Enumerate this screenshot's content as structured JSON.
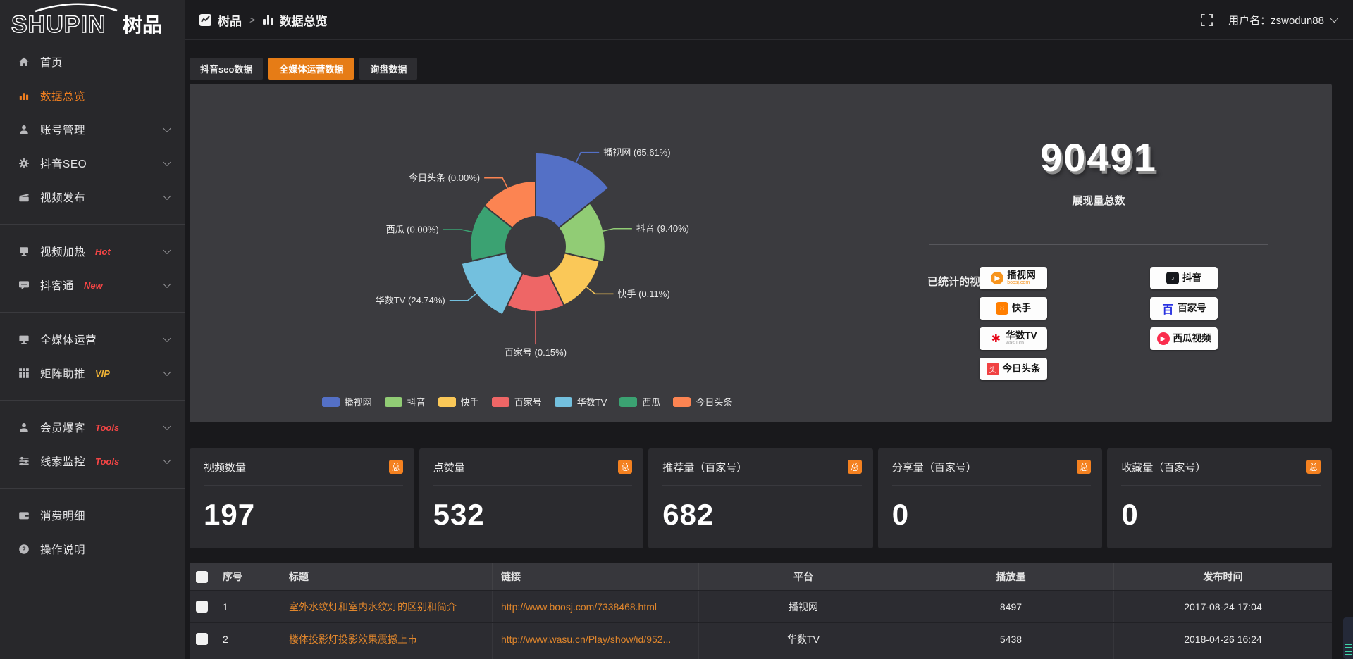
{
  "brand": {
    "name": "SHUPIN",
    "name_cn": "树品"
  },
  "header": {
    "breadcrumb_root": "树品",
    "breadcrumb_sep": ">",
    "breadcrumb_current": "数据总览",
    "user_label": "用户名：zswodun88"
  },
  "sidebar": {
    "items": [
      {
        "key": "home",
        "label": "首页",
        "icon": "home"
      },
      {
        "key": "data-overview",
        "label": "数据总览",
        "icon": "bar-chart",
        "active": true
      },
      {
        "key": "account-management",
        "label": "账号管理",
        "icon": "user",
        "expandable": true
      },
      {
        "key": "douyin-seo",
        "label": "抖音SEO",
        "icon": "gear",
        "expandable": true
      },
      {
        "key": "video-publish",
        "label": "视频发布",
        "icon": "clapperboard",
        "expandable": true
      },
      {
        "divider": true
      },
      {
        "key": "video-heating",
        "label": "视频加热",
        "icon": "screen",
        "tag": "Hot",
        "tag_color": "#f44545",
        "expandable": true
      },
      {
        "key": "douketong",
        "label": "抖客通",
        "icon": "chat",
        "tag": "New",
        "tag_color": "#f44545",
        "expandable": true
      },
      {
        "divider": true
      },
      {
        "key": "omni-media",
        "label": "全媒体运营",
        "icon": "monitor",
        "expandable": true
      },
      {
        "key": "matrix-boost",
        "label": "矩阵助推",
        "icon": "grid",
        "tag": "VIP",
        "tag_color": "#efb336",
        "expandable": true
      },
      {
        "divider": true
      },
      {
        "key": "member-baoke",
        "label": "会员爆客",
        "icon": "user",
        "tag": "Tools",
        "tag_color": "#f44545",
        "expandable": true
      },
      {
        "key": "lead-monitor",
        "label": "线索监控",
        "icon": "sliders",
        "tag": "Tools",
        "tag_color": "#f44545",
        "expandable": true
      },
      {
        "divider": true
      },
      {
        "key": "consumption-detail",
        "label": "消费明细",
        "icon": "wallet"
      },
      {
        "key": "instructions",
        "label": "操作说明",
        "icon": "question"
      }
    ]
  },
  "tabs": [
    {
      "key": "douyin-seo-data",
      "label": "抖音seo数据",
      "active": false
    },
    {
      "key": "omni-media-data",
      "label": "全媒体运营数据",
      "active": true
    },
    {
      "key": "inquiry-data",
      "label": "询盘数据",
      "active": false
    }
  ],
  "chart_data": {
    "type": "pie",
    "variant": "nightingale-rose",
    "unit": "percent",
    "items": [
      {
        "name": "播视网",
        "value": 65.61,
        "label": "播视网 (65.61%)",
        "color": "#5470c6"
      },
      {
        "name": "抖音",
        "value": 9.4,
        "label": "抖音 (9.40%)",
        "color": "#91cc75"
      },
      {
        "name": "快手",
        "value": 0.11,
        "label": "快手 (0.11%)",
        "color": "#fac858"
      },
      {
        "name": "百家号",
        "value": 0.15,
        "label": "百家号 (0.15%)",
        "color": "#ee6666"
      },
      {
        "name": "华数TV",
        "value": 24.74,
        "label": "华数TV (24.74%)",
        "color": "#73c0de"
      },
      {
        "name": "西瓜",
        "value": 0.0,
        "label": "西瓜 (0.00%)",
        "color": "#3ba272"
      },
      {
        "name": "今日头条",
        "value": 0.0,
        "label": "今日头条 (0.00%)",
        "color": "#fc8452"
      }
    ],
    "legend": [
      "播视网",
      "抖音",
      "快手",
      "百家号",
      "华数TV",
      "西瓜",
      "今日头条"
    ],
    "legend_position": "bottom"
  },
  "summary": {
    "total_value": "90491",
    "total_label": "展现量总数",
    "platforms_title": "已统计的视频平台：",
    "platform_badges": [
      {
        "key": "boshiwang",
        "name": "播视网",
        "sub": "boosj.com",
        "sub_color": "#f7941d",
        "color": "#f7941d",
        "glyph": "▶",
        "shape": "circle",
        "col": 1
      },
      {
        "key": "kuaishou",
        "name": "快手",
        "color": "#ff7e00",
        "glyph": "8",
        "shape": "square",
        "col": 1
      },
      {
        "key": "wasu-tv",
        "name": "华数TV",
        "sub": "wasu.cn",
        "sub_color": "#9a9a9a",
        "color": "#e60012",
        "glyph": "✱",
        "shape": "plain",
        "col": 1
      },
      {
        "key": "toutiao",
        "name": "今日头条",
        "color": "#f04142",
        "glyph": "头",
        "shape": "square",
        "col": 1
      },
      {
        "key": "douyin",
        "name": "抖音",
        "color": "#16181d",
        "glyph": "♪",
        "shape": "square",
        "col": 2
      },
      {
        "key": "baijiahao",
        "name": "百家号",
        "color": "#2932e1",
        "glyph": "百",
        "shape": "plain",
        "col": 2
      },
      {
        "key": "xigua",
        "name": "西瓜视频",
        "color": "#fa2c4d",
        "glyph": "▶",
        "shape": "circle",
        "col": 2
      }
    ]
  },
  "stat_cards": [
    {
      "label": "视频数量",
      "badge": "总",
      "value": "197"
    },
    {
      "label": "点赞量",
      "badge": "总",
      "value": "532"
    },
    {
      "label": "推荐量（百家号）",
      "badge": "总",
      "value": "682"
    },
    {
      "label": "分享量（百家号）",
      "badge": "总",
      "value": "0"
    },
    {
      "label": "收藏量（百家号）",
      "badge": "总",
      "value": "0"
    }
  ],
  "table": {
    "headers": [
      "序号",
      "标题",
      "链接",
      "平台",
      "播放量",
      "发布时间"
    ],
    "rows": [
      {
        "num": "1",
        "title": "室外水纹灯和室内水纹灯的区别和简介",
        "link": "http://www.boosj.com/7338468.html",
        "platform": "播视网",
        "plays": "8497",
        "time": "2017-08-24 17:04"
      },
      {
        "num": "2",
        "title": "楼体投影灯投影效果震撼上市",
        "link": "http://www.wasu.cn/Play/show/id/952...",
        "platform": "华数TV",
        "plays": "5438",
        "time": "2018-04-26 16:24"
      }
    ]
  },
  "colors": {
    "accent": "#e67c16",
    "badge_orange": "#f48120",
    "link_orange": "#e0862c",
    "sidebar_active": "#ee7e20"
  }
}
